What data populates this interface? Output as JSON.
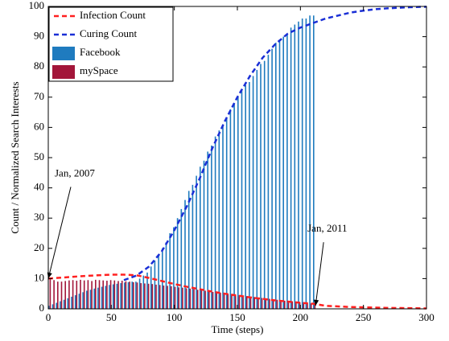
{
  "chart_data": {
    "type": "combo",
    "xlabel": "Time (steps)",
    "ylabel": "Count / Normalized Search Interests",
    "xlim": [
      0,
      300
    ],
    "ylim": [
      0,
      100
    ],
    "xticks": [
      0,
      50,
      100,
      150,
      200,
      250,
      300
    ],
    "yticks": [
      0,
      10,
      20,
      30,
      40,
      50,
      60,
      70,
      80,
      90,
      100
    ],
    "grid": false,
    "legend": "upper left",
    "series": [
      {
        "name": "Infection Count",
        "type": "line",
        "color": "#ff2020",
        "x": [
          0,
          10,
          20,
          30,
          40,
          50,
          60,
          70,
          80,
          90,
          100,
          110,
          120,
          130,
          140,
          150,
          160,
          170,
          180,
          190,
          200,
          210,
          220,
          230,
          240,
          250,
          260,
          270,
          280,
          290,
          300
        ],
        "values": [
          10,
          10.3,
          10.6,
          10.9,
          11.1,
          11.3,
          11.3,
          11.1,
          10.2,
          9.2,
          8.2,
          7.3,
          6.5,
          5.7,
          5.0,
          4.4,
          3.8,
          3.3,
          2.8,
          2.4,
          2.0,
          1.7,
          1.0,
          0.8,
          0.6,
          0.5,
          0.4,
          0.3,
          0.25,
          0.2,
          0.15
        ]
      },
      {
        "name": "Curing Count",
        "type": "line",
        "color": "#1a2fd6",
        "x": [
          0,
          10,
          20,
          30,
          40,
          50,
          60,
          70,
          80,
          90,
          100,
          110,
          120,
          130,
          140,
          150,
          160,
          170,
          180,
          190,
          200,
          210,
          220,
          230,
          240,
          250,
          260,
          270,
          280,
          290,
          300
        ],
        "values": [
          null,
          null,
          null,
          null,
          null,
          null,
          9.5,
          11,
          14,
          19,
          26,
          34,
          43,
          53,
          62,
          70,
          77,
          83,
          87.5,
          91,
          93,
          94.5,
          96,
          97,
          98,
          98.6,
          99.1,
          99.4,
          99.6,
          99.8,
          99.9
        ]
      },
      {
        "name": "Facebook",
        "type": "bar",
        "color": "#1f7bbf",
        "x": [
          0,
          3,
          6,
          9,
          12,
          15,
          18,
          21,
          24,
          27,
          30,
          33,
          36,
          39,
          42,
          45,
          48,
          51,
          54,
          57,
          60,
          63,
          66,
          69,
          72,
          75,
          78,
          81,
          84,
          87,
          90,
          93,
          96,
          99,
          102,
          105,
          108,
          111,
          114,
          117,
          120,
          123,
          126,
          129,
          132,
          135,
          138,
          141,
          144,
          147,
          150,
          153,
          156,
          159,
          162,
          165,
          168,
          171,
          174,
          177,
          180,
          183,
          186,
          189,
          192,
          195,
          198,
          201,
          204,
          207,
          210
        ],
        "values": [
          1,
          1.5,
          2,
          2.5,
          3,
          3.5,
          4,
          4.5,
          5,
          5.5,
          6,
          6.3,
          6.7,
          7,
          7.3,
          7.6,
          7.9,
          8.1,
          8.3,
          8.5,
          8.7,
          8.8,
          9,
          9,
          10,
          11,
          12,
          14,
          16,
          18,
          20,
          22,
          25,
          27,
          30,
          33,
          36,
          39,
          41,
          44,
          47,
          49,
          52,
          54,
          57,
          59,
          61,
          63,
          66,
          68,
          70,
          72,
          74,
          75,
          77,
          79,
          81,
          82,
          84,
          86,
          88,
          89,
          90,
          91,
          93,
          94,
          95,
          96,
          96,
          97,
          97
        ]
      },
      {
        "name": "mySpace",
        "type": "bar",
        "color": "#a3163a",
        "x": [
          0,
          3,
          6,
          9,
          12,
          15,
          18,
          21,
          24,
          27,
          30,
          33,
          36,
          39,
          42,
          45,
          48,
          51,
          54,
          57,
          60,
          63,
          66,
          69,
          72,
          75,
          78,
          81,
          84,
          87,
          90,
          93,
          96,
          99,
          102,
          105,
          108,
          111,
          114,
          117,
          120,
          123,
          126,
          129,
          132,
          135,
          138,
          141,
          144,
          147,
          150,
          153,
          156,
          159,
          162,
          165,
          168,
          171,
          174,
          177,
          180,
          183,
          186,
          189,
          192,
          195,
          198,
          201,
          204,
          207,
          210
        ],
        "values": [
          10,
          9.5,
          9,
          9,
          9.2,
          9.4,
          9.5,
          9.3,
          9.6,
          9.4,
          9.5,
          9.2,
          9.6,
          9.5,
          9.4,
          9.3,
          9.5,
          9.4,
          9.2,
          9.3,
          9.1,
          9,
          8.8,
          8.7,
          8.5,
          8.4,
          8.3,
          8.2,
          8,
          7.9,
          7.7,
          7.6,
          7.5,
          7.3,
          7.1,
          7,
          6.8,
          6.7,
          6.5,
          6.3,
          6.1,
          6,
          5.8,
          5.6,
          5.5,
          5.3,
          5.2,
          5,
          4.8,
          4.7,
          4.5,
          4.4,
          4.2,
          4,
          3.9,
          3.7,
          3.6,
          3.4,
          3.3,
          3.1,
          3,
          2.9,
          2.7,
          2.6,
          2.5,
          2.3,
          2.2,
          2.1,
          1.9,
          1.8,
          1.6
        ]
      }
    ],
    "annotations": [
      {
        "text": "Jan, 2007",
        "x": 0,
        "y": 10
      },
      {
        "text": "Jan, 2011",
        "x": 212,
        "y": 1
      }
    ]
  }
}
